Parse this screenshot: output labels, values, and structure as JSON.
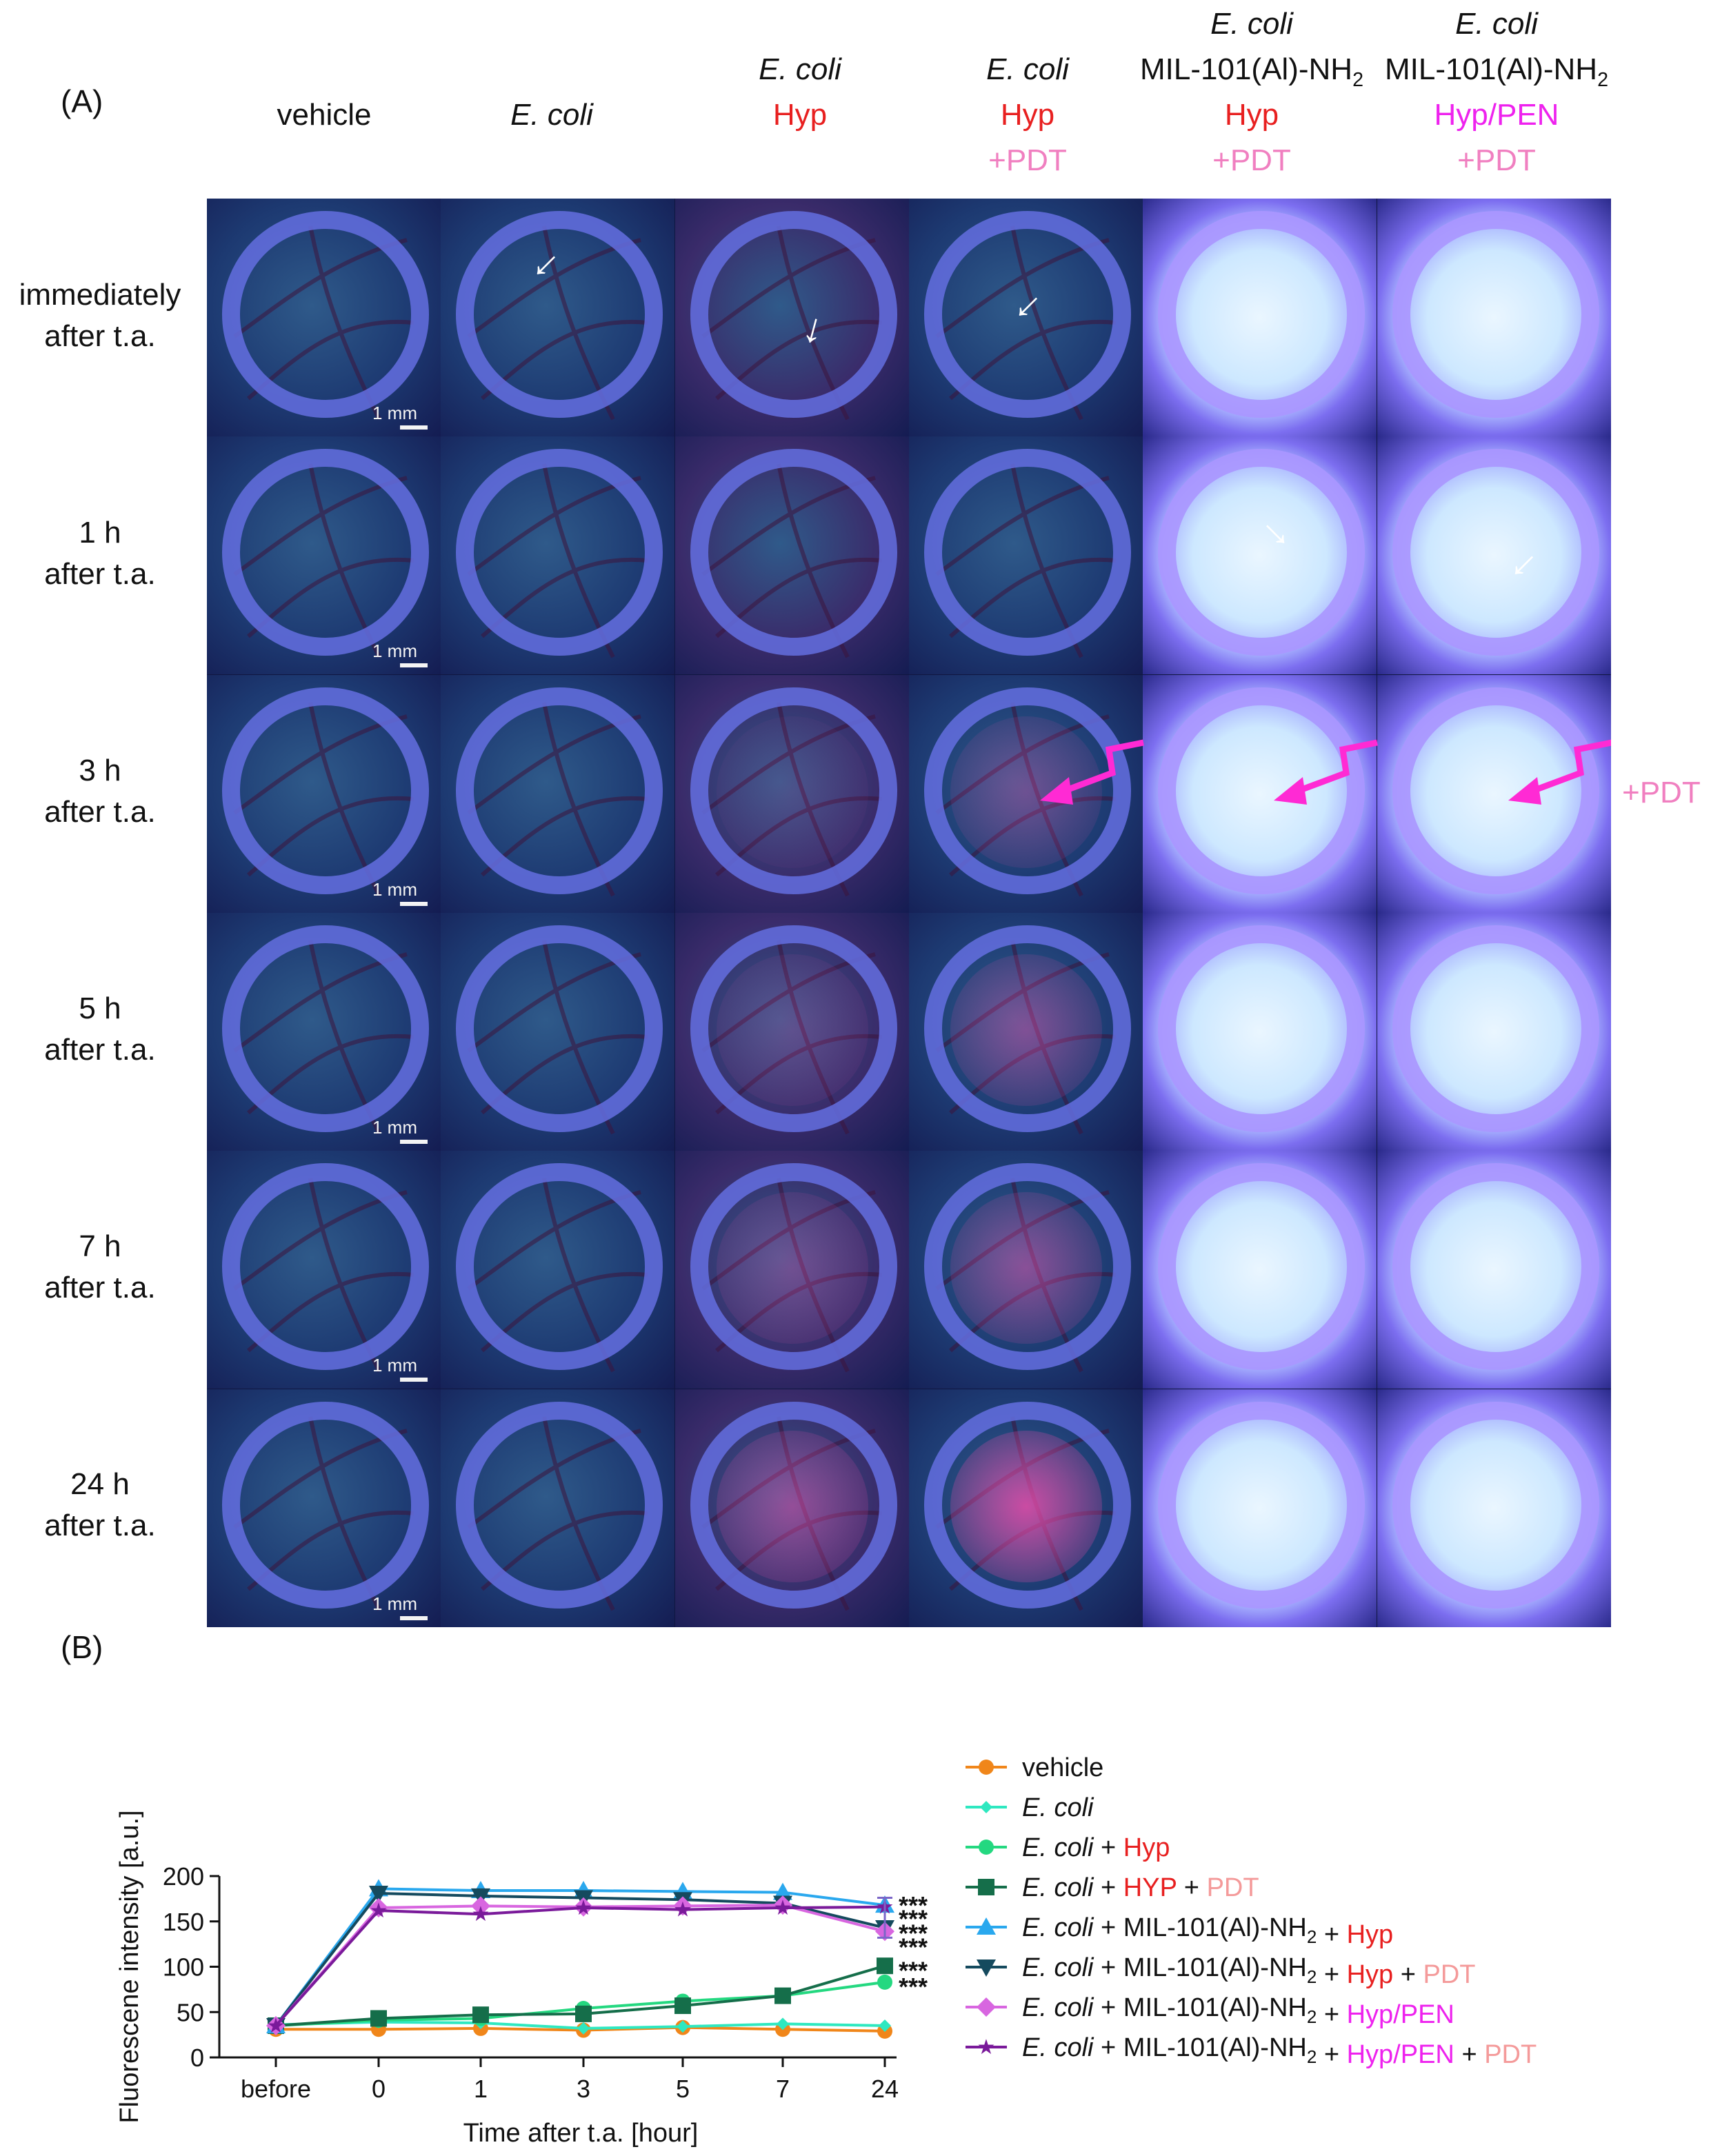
{
  "panel_a": {
    "label": "(A)",
    "columns": [
      {
        "line1": "",
        "line2": "",
        "line3": "vehicle",
        "line3_italic": false,
        "line3_color": "#111111",
        "line4": "",
        "line4_color": "#f07fc0"
      },
      {
        "line1": "",
        "line2": "",
        "line3": "E. coli",
        "line3_italic": true,
        "line3_color": "#111111",
        "line4": "",
        "line4_color": "#f07fc0"
      },
      {
        "line1": "",
        "line2": "E. coli",
        "line3": "Hyp",
        "line3_italic": false,
        "line3_color": "#e82020",
        "line4": "",
        "line4_color": "#f07fc0"
      },
      {
        "line1": "",
        "line2": "E. coli",
        "line3": "Hyp",
        "line3_italic": false,
        "line3_color": "#e82020",
        "line4": "+PDT",
        "line4_color": "#f07fc0"
      },
      {
        "line1": "E. coli",
        "line2": "MIL-101(Al)-NH2",
        "line3": "Hyp",
        "line3_italic": false,
        "line3_color": "#e82020",
        "line4": "+PDT",
        "line4_color": "#f07fc0"
      },
      {
        "line1": "E. coli",
        "line2": "MIL-101(Al)-NH2",
        "line3": "Hyp/PEN",
        "line3_italic": false,
        "line3_color": "#ee22ee",
        "line4": "+PDT",
        "line4_color": "#f07fc0"
      }
    ],
    "rows": [
      {
        "line1": "immediately",
        "line2": "after t.a."
      },
      {
        "line1": "1 h",
        "line2": "after t.a."
      },
      {
        "line1": "3 h",
        "line2": "after t.a."
      },
      {
        "line1": "5 h",
        "line2": "after t.a."
      },
      {
        "line1": "7 h",
        "line2": "after t.a."
      },
      {
        "line1": "24 h",
        "line2": "after t.a."
      }
    ],
    "scale_label": "1 mm",
    "pdt_side_label": "+PDT",
    "colors": {
      "dark_bg": "#14205a",
      "ring": "#6a72e6",
      "glow": "#dff2ff",
      "pink_signal": "#e64aa8",
      "arrow_magenta": "#ff2ad4"
    }
  },
  "panel_b": {
    "label": "(B)",
    "significance": "***"
  },
  "chart_data": {
    "type": "line",
    "title": "",
    "xlabel": "Time after t.a. [hour]",
    "ylabel": "Fluorescene intensity [a.u.]",
    "categories": [
      "before",
      "0",
      "1",
      "3",
      "5",
      "7",
      "24"
    ],
    "ylim": [
      0,
      200
    ],
    "yticks": [
      0,
      50,
      100,
      150,
      200
    ],
    "legend_position": "right",
    "series": [
      {
        "name": "vehicle",
        "values": [
          31,
          31,
          32,
          30,
          33,
          31,
          29
        ],
        "color": "#f0861a",
        "marker": "circle",
        "legend_parts": [
          {
            "t": "vehicle",
            "c": "#111111",
            "i": false
          }
        ]
      },
      {
        "name": "E. coli",
        "values": [
          36,
          39,
          38,
          32,
          34,
          37,
          35
        ],
        "color": "#2ee8c0",
        "marker": "diamond-small",
        "legend_parts": [
          {
            "t": "E. coli",
            "c": "#111111",
            "i": true
          }
        ]
      },
      {
        "name": "E. coli + Hyp",
        "values": [
          35,
          41,
          43,
          54,
          62,
          68,
          83
        ],
        "color": "#24d880",
        "marker": "circle",
        "legend_parts": [
          {
            "t": "E. coli",
            "c": "#111111",
            "i": true
          },
          {
            "t": " + ",
            "c": "#111111",
            "i": false
          },
          {
            "t": "Hyp",
            "c": "#e82020",
            "i": false
          }
        ]
      },
      {
        "name": "E. coli + HYP + PDT",
        "values": [
          35,
          43,
          47,
          48,
          57,
          68,
          101
        ],
        "color": "#156e4a",
        "marker": "square",
        "legend_parts": [
          {
            "t": "E. coli",
            "c": "#111111",
            "i": true
          },
          {
            "t": " + ",
            "c": "#111111",
            "i": false
          },
          {
            "t": "HYP",
            "c": "#e82020",
            "i": false
          },
          {
            "t": " + ",
            "c": "#111111",
            "i": false
          },
          {
            "t": "PDT",
            "c": "#f49a9a",
            "i": false
          }
        ]
      },
      {
        "name": "E. coli + MIL-101(Al)-NH2 + Hyp",
        "values": [
          35,
          186,
          184,
          184,
          183,
          182,
          168
        ],
        "color": "#2aa8ee",
        "marker": "triangle-up",
        "legend_parts": [
          {
            "t": "E. coli",
            "c": "#111111",
            "i": true
          },
          {
            "t": " + MIL-101(Al)-NH2 + ",
            "c": "#111111",
            "i": false
          },
          {
            "t": "Hyp",
            "c": "#e82020",
            "i": false
          }
        ]
      },
      {
        "name": "E. coli + MIL-101(Al)-NH2 + Hyp + PDT",
        "values": [
          35,
          181,
          178,
          176,
          174,
          170,
          143
        ],
        "color": "#154a5e",
        "marker": "triangle-down",
        "legend_parts": [
          {
            "t": "E. coli",
            "c": "#111111",
            "i": true
          },
          {
            "t": " + MIL-101(Al)-NH2 + ",
            "c": "#111111",
            "i": false
          },
          {
            "t": "Hyp",
            "c": "#e82020",
            "i": false
          },
          {
            "t": " + ",
            "c": "#111111",
            "i": false
          },
          {
            "t": "PDT",
            "c": "#f49a9a",
            "i": false
          }
        ]
      },
      {
        "name": "E. coli + MIL-101(Al)-NH2 + Hyp/PEN",
        "values": [
          35,
          165,
          167,
          166,
          167,
          168,
          139
        ],
        "color": "#d866e0",
        "marker": "diamond",
        "legend_parts": [
          {
            "t": "E. coli",
            "c": "#111111",
            "i": true
          },
          {
            "t": " + MIL-101(Al)-NH2 + ",
            "c": "#111111",
            "i": false
          },
          {
            "t": "Hyp/PEN",
            "c": "#ee22ee",
            "i": false
          }
        ]
      },
      {
        "name": "E. coli + MIL-101(Al)-NH2 + Hyp/PEN + PDT",
        "values": [
          35,
          162,
          158,
          165,
          163,
          165,
          166
        ],
        "color": "#7a1a9a",
        "marker": "star",
        "legend_parts": [
          {
            "t": "E. coli",
            "c": "#111111",
            "i": true
          },
          {
            "t": " + MIL-101(Al)-NH2 + ",
            "c": "#111111",
            "i": false
          },
          {
            "t": "Hyp/PEN",
            "c": "#ee22ee",
            "i": false
          },
          {
            "t": " + ",
            "c": "#111111",
            "i": false
          },
          {
            "t": "PDT",
            "c": "#f49a9a",
            "i": false
          }
        ]
      }
    ],
    "annotations_at_24h": [
      "***",
      "***",
      "***",
      "***",
      "***",
      "***"
    ]
  }
}
